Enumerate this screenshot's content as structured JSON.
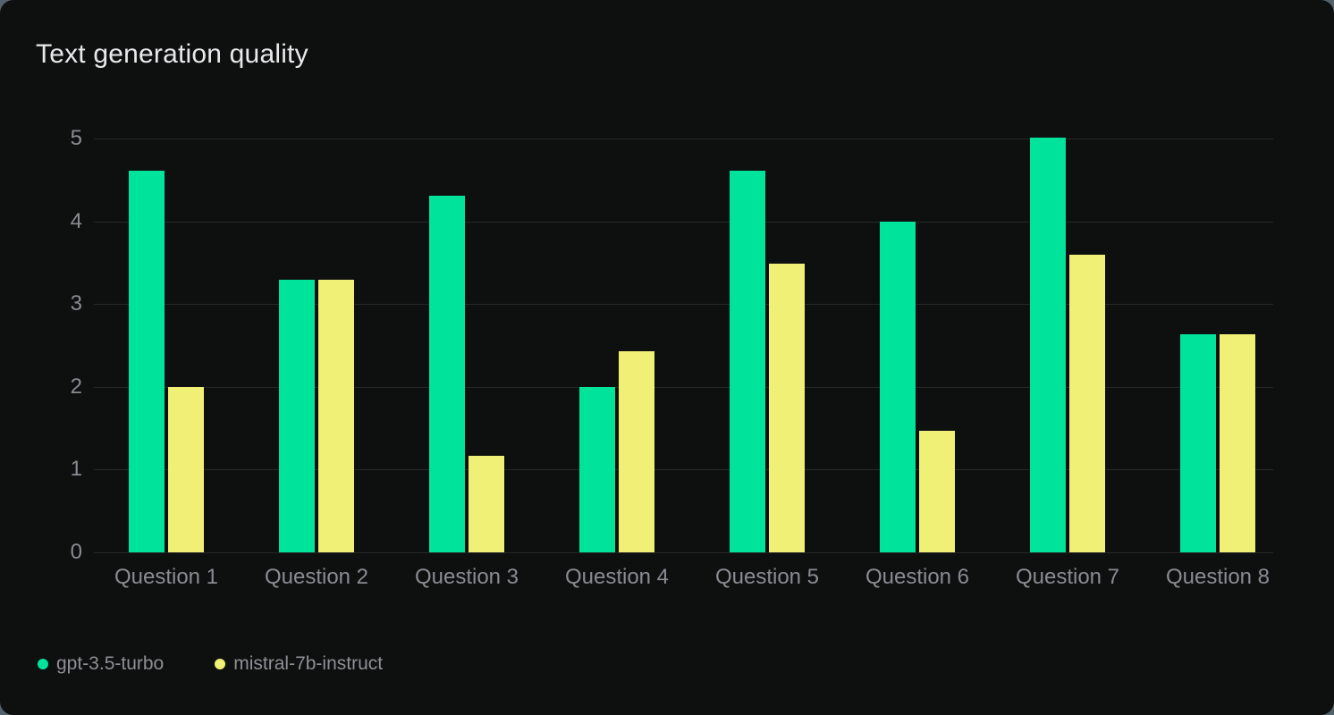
{
  "panel": {
    "title": "Text generation quality"
  },
  "chart_data": {
    "type": "bar",
    "title": "Text generation quality",
    "categories": [
      "Question 1",
      "Question 2",
      "Question 3",
      "Question 4",
      "Question 5",
      "Question 6",
      "Question 7",
      "Question 8"
    ],
    "series": [
      {
        "name": "gpt-3.5-turbo",
        "color": "#00e39b",
        "values": [
          4.61,
          3.29,
          4.31,
          2.0,
          4.61,
          4.0,
          5.01,
          2.63
        ]
      },
      {
        "name": "mistral-7b-instruct",
        "color": "#f0f077",
        "values": [
          2.0,
          3.29,
          1.17,
          2.43,
          3.49,
          1.47,
          3.6,
          2.63
        ]
      }
    ],
    "xlabel": "",
    "ylabel": "",
    "ylim": [
      0,
      5
    ],
    "yticks": [
      0,
      1,
      2,
      3,
      4,
      5
    ],
    "grid": "horizontal",
    "legend_position": "bottom-left"
  },
  "theme": {
    "page_background": "#53636b",
    "panel_background": "#0e0f0f",
    "gridline_color": "#272928",
    "tick_label_color": "#8b8b92",
    "legend_label_color": "#8f8f96",
    "title_color": "#e9e9ec"
  }
}
